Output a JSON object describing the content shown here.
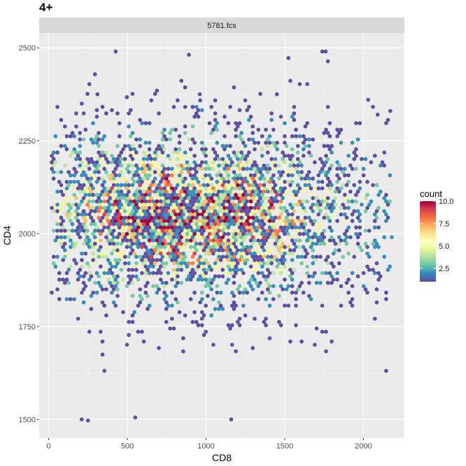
{
  "chart_data": {
    "type": "hexbin",
    "title": "4+",
    "facet_label": "5781.fcs",
    "xlabel": "CD8",
    "ylabel": "CD4",
    "xlim": [
      -60,
      2260
    ],
    "ylim": [
      1450,
      2540
    ],
    "x_ticks": [
      0,
      500,
      1000,
      1500,
      2000
    ],
    "y_ticks": [
      1500,
      1750,
      2000,
      2250,
      2500
    ],
    "grid": true,
    "legend": {
      "title": "count",
      "position": "right",
      "min": 1,
      "max": 10,
      "ticks": [
        2.5,
        5.0,
        7.5,
        10.0
      ],
      "colors": [
        "#5E4FA2",
        "#3288BD",
        "#66C2A5",
        "#ABDDA4",
        "#E6F598",
        "#FFFFBF",
        "#FEE08B",
        "#FDAE61",
        "#F46D43",
        "#D53E4F",
        "#9E0142"
      ]
    },
    "distribution": {
      "center_x": 900,
      "spread_x": 700,
      "center_y": 2050,
      "spread_y": 130,
      "x_range": [
        20,
        2180
      ],
      "y_range": [
        1495,
        2490
      ],
      "dense_region_x": [
        60,
        1650
      ],
      "dense_region_y": [
        1920,
        2150
      ],
      "max_count": 10
    },
    "notable_points": [
      {
        "x": 1760,
        "y": 2490
      },
      {
        "x": 310,
        "y": 2375
      },
      {
        "x": 960,
        "y": 2375
      },
      {
        "x": 1450,
        "y": 2375
      },
      {
        "x": 2030,
        "y": 2360
      },
      {
        "x": 2170,
        "y": 2330
      },
      {
        "x": 2090,
        "y": 2320
      },
      {
        "x": 210,
        "y": 1500
      },
      {
        "x": 250,
        "y": 1497
      },
      {
        "x": 1160,
        "y": 1500
      },
      {
        "x": 550,
        "y": 1505
      }
    ]
  }
}
